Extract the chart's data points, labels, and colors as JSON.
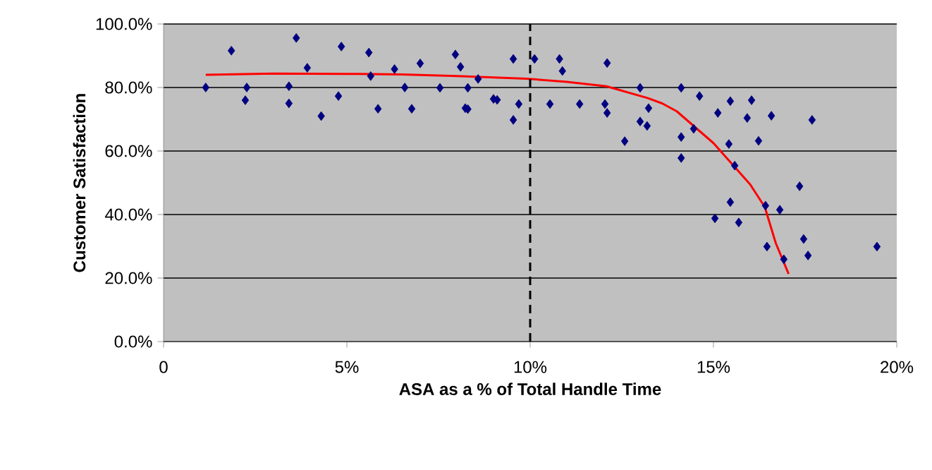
{
  "chart_data": {
    "type": "scatter",
    "xlabel": "ASA as a % of Total Handle Time",
    "ylabel": "Customer Satisfaction",
    "xlim": [
      0,
      20
    ],
    "ylim": [
      0,
      100
    ],
    "xticks": [
      {
        "value": 0,
        "label": "0"
      },
      {
        "value": 5,
        "label": "5%"
      },
      {
        "value": 10,
        "label": "10%"
      },
      {
        "value": 15,
        "label": "15%"
      },
      {
        "value": 20,
        "label": "20%"
      }
    ],
    "yticks": [
      {
        "value": 0,
        "label": "0.0%"
      },
      {
        "value": 20,
        "label": "20.0%"
      },
      {
        "value": 40,
        "label": "40.0%"
      },
      {
        "value": 60,
        "label": "60.0%"
      },
      {
        "value": 80,
        "label": "80.0%"
      },
      {
        "value": 100,
        "label": "100.0%"
      }
    ],
    "grid": "y",
    "marker": "diamond",
    "series": [
      {
        "color": "#000080",
        "x": [
          1.15,
          1.85,
          2.27,
          2.23,
          3.42,
          3.42,
          3.62,
          3.92,
          4.3,
          4.77,
          4.85,
          5.6,
          5.65,
          5.85,
          6.3,
          6.58,
          6.77,
          7.0,
          7.96,
          8.1,
          8.58,
          7.54,
          8.3,
          8.23,
          8.3,
          9.0,
          9.1,
          9.54,
          9.69,
          9.54,
          10.12,
          10.8,
          10.88,
          10.54,
          11.35,
          12.1,
          12.04,
          12.1,
          12.58,
          13.0,
          13.0,
          13.19,
          13.23,
          14.12,
          14.62,
          15.12,
          15.46,
          16.04,
          15.92,
          16.58,
          17.69,
          14.12,
          14.46,
          14.12,
          15.42,
          16.23,
          15.58,
          17.35,
          15.46,
          15.04,
          15.69,
          16.42,
          16.81,
          16.46,
          16.92,
          17.46,
          17.58,
          19.46
        ],
        "values": [
          80,
          91.6,
          80,
          76,
          80.4,
          75,
          95.6,
          86.2,
          71,
          77.3,
          92.9,
          91,
          83.6,
          73.3,
          85.8,
          80,
          73.3,
          87.6,
          90.4,
          86.5,
          82.7,
          79.9,
          79.9,
          73.5,
          73.2,
          76.4,
          76.1,
          89,
          74.8,
          69.8,
          89,
          89,
          85.2,
          74.8,
          74.8,
          87.7,
          74.8,
          72,
          63.1,
          79.9,
          69.3,
          67.9,
          73.5,
          79.9,
          77.3,
          72,
          75.7,
          76,
          70.4,
          71.1,
          69.8,
          64.4,
          67,
          57.8,
          62.2,
          63.2,
          55.4,
          48.9,
          43.9,
          38.8,
          37.5,
          42.8,
          41.5,
          29.9,
          25.9,
          32.3,
          27.1,
          29.9
        ]
      },
      {
        "type": "line",
        "marker": "none",
        "color": "#ff0000",
        "x": [
          1.15,
          3,
          5,
          6.5,
          8,
          9.88,
          11,
          12.08,
          13.2,
          13.6,
          14,
          14.5,
          15,
          15.5,
          16,
          16.4,
          16.7,
          17.05
        ],
        "values": [
          84,
          84.4,
          84.3,
          84.1,
          83.6,
          82.8,
          81.8,
          80.4,
          76.7,
          75,
          72.5,
          67.5,
          62.5,
          56,
          49.5,
          42.4,
          31,
          21.3
        ]
      }
    ],
    "ref_lines": [
      {
        "axis": "x",
        "value": 10,
        "color": "#000000",
        "line_style": "dashed"
      }
    ]
  }
}
